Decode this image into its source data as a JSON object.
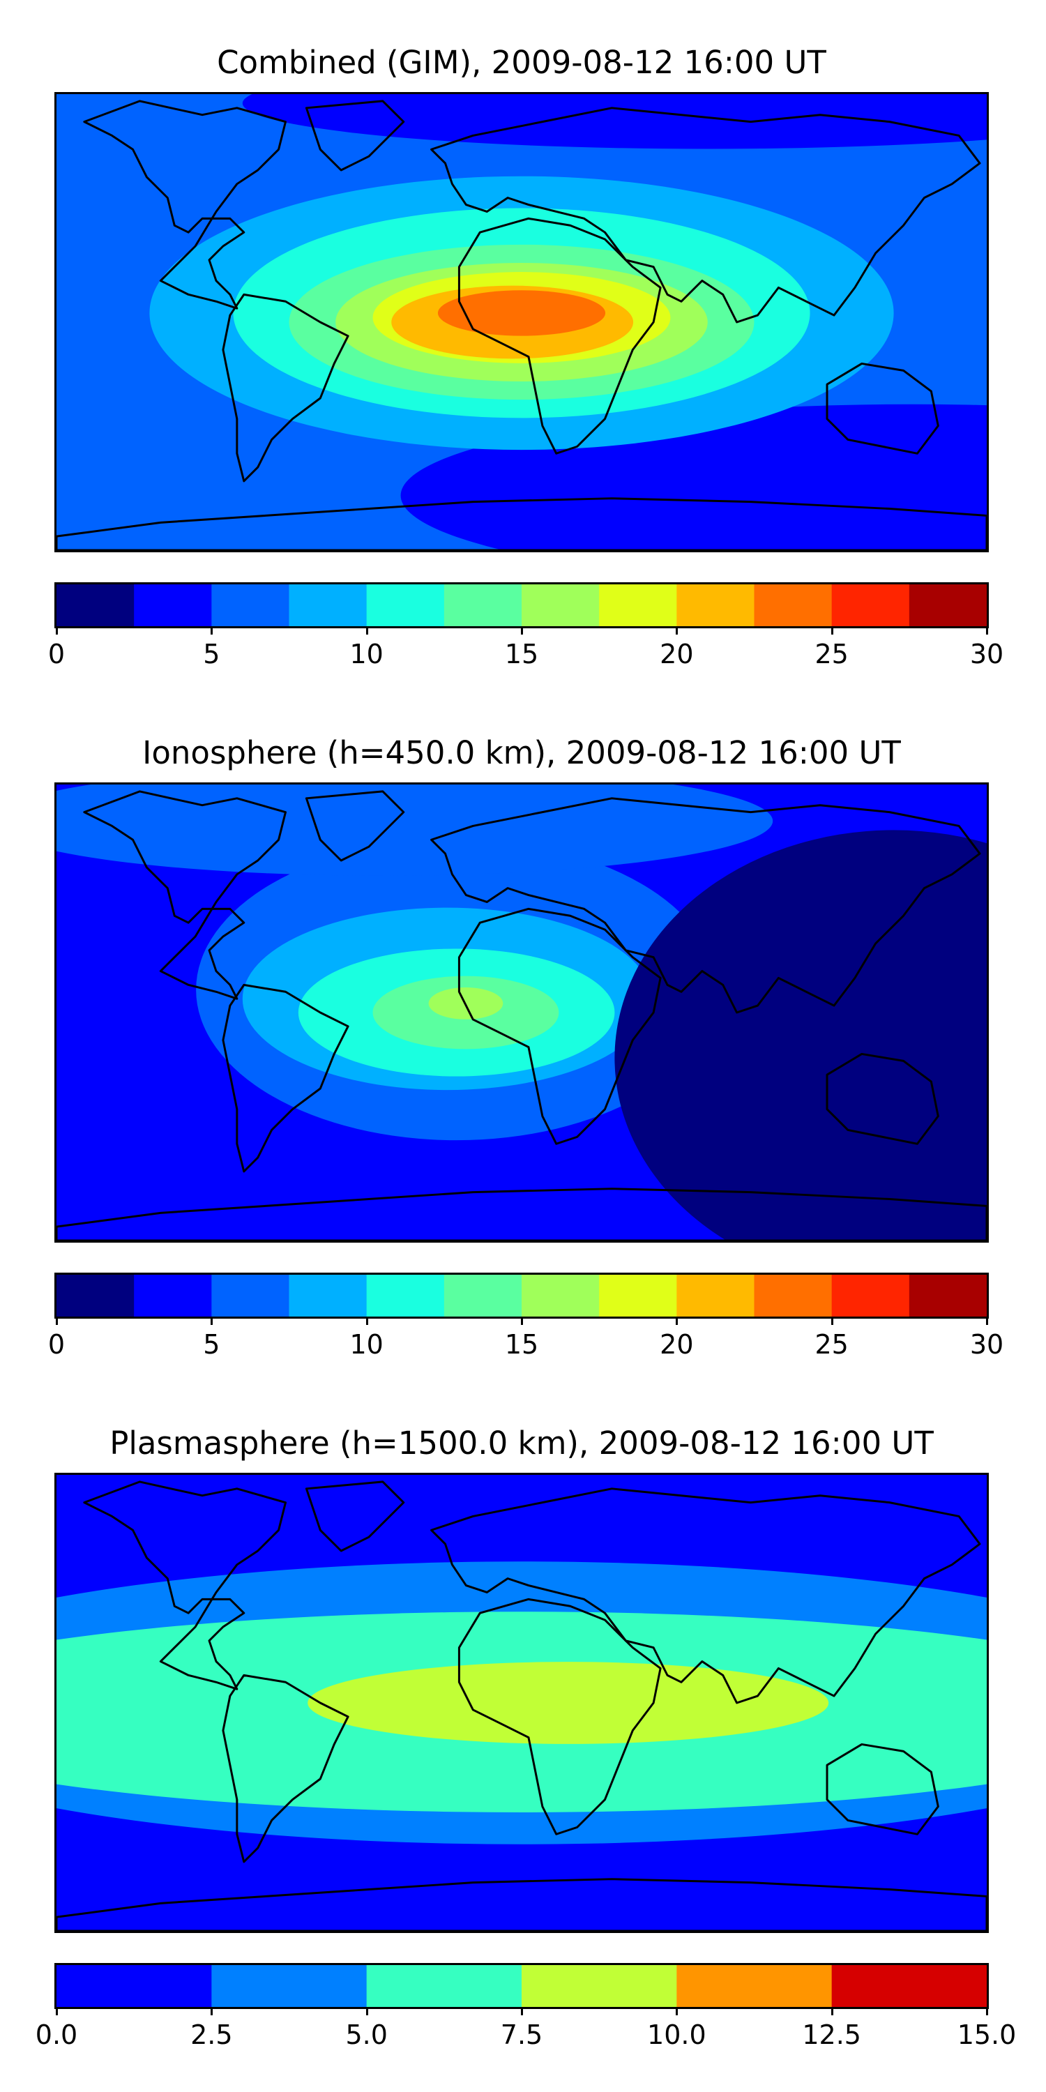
{
  "chart_data": [
    {
      "type": "heatmap",
      "title": "Combined (GIM), 2009-08-12 16:00 UT",
      "colorbar": {
        "levels": [
          0,
          2.5,
          5,
          7.5,
          10,
          12.5,
          15,
          17.5,
          20,
          22.5,
          25,
          27.5,
          30
        ],
        "colors": [
          "#00007f",
          "#0000ff",
          "#0063ff",
          "#00b0ff",
          "#1affe0",
          "#5affa0",
          "#a0ff5a",
          "#e0ff18",
          "#ffba00",
          "#ff6f00",
          "#ff2500",
          "#a80000"
        ],
        "ticks": [
          0,
          5,
          10,
          15,
          20,
          25,
          30
        ],
        "tick_labels": [
          "0",
          "5",
          "10",
          "15",
          "20",
          "25",
          "30"
        ]
      },
      "background_level_color": "#0063ff",
      "contours": [
        {
          "label": "night-low",
          "color": "#0000ff",
          "cx": 0.92,
          "cy": 0.88,
          "rx": 0.55,
          "ry": 0.2
        },
        {
          "label": "north-low",
          "color": "#0000ff",
          "cx": 0.7,
          "cy": 0.02,
          "rx": 0.5,
          "ry": 0.1
        },
        {
          "label": "band-7.5",
          "color": "#00b0ff",
          "cx": 0.5,
          "cy": 0.48,
          "rx": 0.4,
          "ry": 0.3
        },
        {
          "label": "band-10",
          "color": "#1affe0",
          "cx": 0.5,
          "cy": 0.48,
          "rx": 0.31,
          "ry": 0.23
        },
        {
          "label": "band-12.5",
          "color": "#5affa0",
          "cx": 0.5,
          "cy": 0.5,
          "rx": 0.25,
          "ry": 0.17
        },
        {
          "label": "band-15",
          "color": "#a0ff5a",
          "cx": 0.5,
          "cy": 0.5,
          "rx": 0.2,
          "ry": 0.13
        },
        {
          "label": "band-17.5",
          "color": "#e0ff18",
          "cx": 0.5,
          "cy": 0.49,
          "rx": 0.16,
          "ry": 0.1
        },
        {
          "label": "band-20",
          "color": "#ffba00",
          "cx": 0.49,
          "cy": 0.5,
          "rx": 0.13,
          "ry": 0.08
        },
        {
          "label": "band-22.5",
          "color": "#ff6f00",
          "cx": 0.5,
          "cy": 0.48,
          "rx": 0.09,
          "ry": 0.05
        }
      ]
    },
    {
      "type": "heatmap",
      "title": "Ionosphere  (h=450.0 km), 2009-08-12 16:00 UT",
      "colorbar": {
        "levels": [
          0,
          2.5,
          5,
          7.5,
          10,
          12.5,
          15,
          17.5,
          20,
          22.5,
          25,
          27.5,
          30
        ],
        "colors": [
          "#00007f",
          "#0000ff",
          "#0063ff",
          "#00b0ff",
          "#1affe0",
          "#5affa0",
          "#a0ff5a",
          "#e0ff18",
          "#ffba00",
          "#ff6f00",
          "#ff2500",
          "#a80000"
        ],
        "ticks": [
          0,
          5,
          10,
          15,
          20,
          25,
          30
        ],
        "tick_labels": [
          "0",
          "5",
          "10",
          "15",
          "20",
          "25",
          "30"
        ]
      },
      "background_level_color": "#0000ff",
      "contours": [
        {
          "label": "band-5-west",
          "color": "#0063ff",
          "cx": 0.43,
          "cy": 0.45,
          "rx": 0.28,
          "ry": 0.33
        },
        {
          "label": "band-5-north",
          "color": "#0063ff",
          "cx": 0.35,
          "cy": 0.08,
          "rx": 0.42,
          "ry": 0.12
        },
        {
          "label": "band-7.5",
          "color": "#00b0ff",
          "cx": 0.42,
          "cy": 0.47,
          "rx": 0.22,
          "ry": 0.2
        },
        {
          "label": "band-10",
          "color": "#1affe0",
          "cx": 0.43,
          "cy": 0.5,
          "rx": 0.17,
          "ry": 0.14
        },
        {
          "label": "band-12.5",
          "color": "#5affa0",
          "cx": 0.44,
          "cy": 0.5,
          "rx": 0.1,
          "ry": 0.08
        },
        {
          "label": "band-15",
          "color": "#a0ff5a",
          "cx": 0.44,
          "cy": 0.48,
          "rx": 0.04,
          "ry": 0.035
        },
        {
          "label": "night-low",
          "color": "#00007f",
          "cx": 0.9,
          "cy": 0.6,
          "rx": 0.3,
          "ry": 0.5
        }
      ]
    },
    {
      "type": "heatmap",
      "title": "Plasmasphere (h=1500.0 km), 2009-08-12 16:00 UT",
      "colorbar": {
        "levels": [
          0.0,
          2.5,
          5.0,
          7.5,
          10.0,
          12.5,
          15.0
        ],
        "colors": [
          "#0000ff",
          "#0080ff",
          "#36ffc1",
          "#c1ff36",
          "#ff9500",
          "#d60000"
        ],
        "ticks": [
          0.0,
          2.5,
          5.0,
          7.5,
          10.0,
          12.5,
          15.0
        ],
        "tick_labels": [
          "0.0",
          "2.5",
          "5.0",
          "7.5",
          "10.0",
          "12.5",
          "15.0"
        ]
      },
      "background_level_color": "#0000ff",
      "contours": [
        {
          "label": "band-2.5",
          "color": "#0080ff",
          "cx": 0.5,
          "cy": 0.5,
          "rx": 0.75,
          "ry": 0.31
        },
        {
          "label": "band-5",
          "color": "#36ffc1",
          "cx": 0.5,
          "cy": 0.52,
          "rx": 0.72,
          "ry": 0.22
        },
        {
          "label": "band-7.5",
          "color": "#c1ff36",
          "cx": 0.55,
          "cy": 0.5,
          "rx": 0.28,
          "ry": 0.09
        }
      ]
    }
  ]
}
